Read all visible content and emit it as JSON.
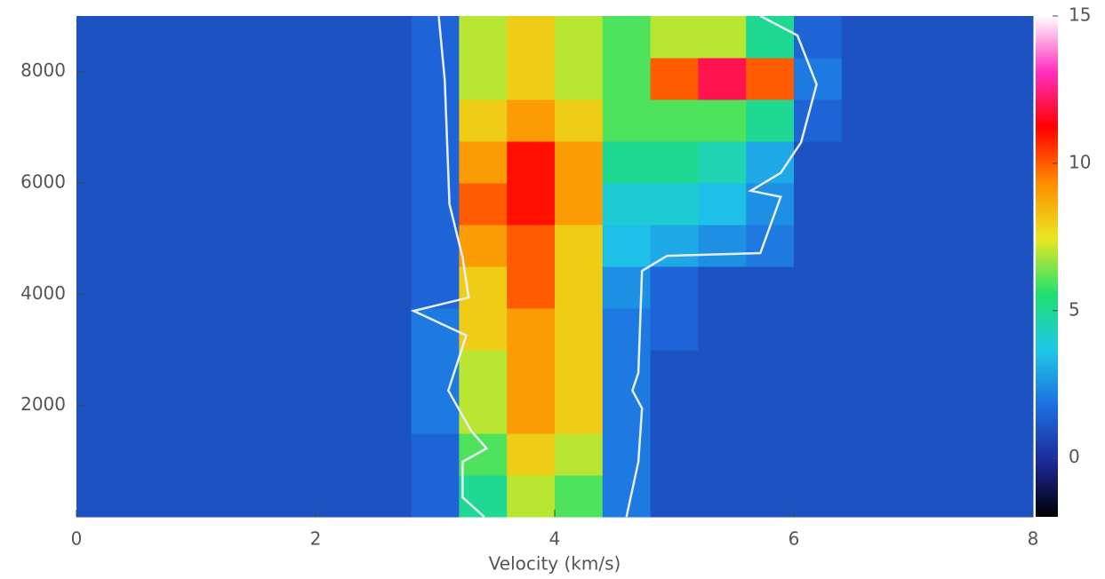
{
  "chart_data": {
    "type": "heatmap",
    "xlabel": "Velocity (km/s)",
    "xlim": [
      0,
      8
    ],
    "xticks": [
      0,
      2,
      4,
      6,
      8
    ],
    "ylim": [
      0,
      9000
    ],
    "yticks": [
      2000,
      4000,
      6000,
      8000
    ],
    "x_bins": [
      0,
      0.4,
      0.8,
      1.2,
      1.6,
      2.0,
      2.4,
      2.8,
      3.2,
      3.6,
      4.0,
      4.4,
      4.8,
      5.2,
      5.6,
      6.0,
      6.4,
      6.8,
      7.2,
      7.6,
      8.0
    ],
    "y_bins": [
      0,
      750,
      1500,
      2250,
      3000,
      3750,
      4500,
      5250,
      6000,
      6750,
      7500,
      8250,
      9000
    ],
    "z": [
      [
        1,
        1,
        1,
        1,
        1,
        1,
        1,
        1.5,
        5,
        7,
        6,
        2,
        1,
        1,
        1,
        1,
        1,
        1,
        1,
        1
      ],
      [
        1,
        1,
        1,
        1,
        1,
        1,
        1,
        1.5,
        6,
        8,
        7,
        2,
        1,
        1,
        1,
        1,
        1,
        1,
        1,
        1
      ],
      [
        1,
        1,
        1,
        1,
        1,
        1,
        1,
        2,
        7,
        9,
        8,
        2,
        1,
        1,
        1,
        1,
        1,
        1,
        1,
        1
      ],
      [
        1,
        1,
        1,
        1,
        1,
        1,
        1,
        2,
        7,
        9,
        8,
        2,
        1,
        1,
        1,
        1,
        1,
        1,
        1,
        1
      ],
      [
        1,
        1,
        1,
        1,
        1,
        1,
        1,
        2,
        8,
        9,
        8,
        2,
        1.5,
        1,
        1,
        1,
        1,
        1,
        1,
        1
      ],
      [
        1,
        1,
        1,
        1,
        1,
        1,
        1,
        1.5,
        8,
        10,
        8,
        2.5,
        1.5,
        1,
        1,
        1,
        1,
        1,
        1,
        1
      ],
      [
        1,
        1,
        1,
        1,
        1,
        1,
        1,
        1.5,
        9,
        10,
        8,
        3.5,
        3,
        2.5,
        2,
        1,
        1,
        1,
        1,
        1
      ],
      [
        1,
        1,
        1,
        1,
        1,
        1,
        1,
        1.5,
        10,
        11,
        9,
        4,
        4,
        3.5,
        2.5,
        1,
        1,
        1,
        1,
        1
      ],
      [
        1,
        1,
        1,
        1,
        1,
        1,
        1,
        1.5,
        9,
        11,
        9,
        5,
        5,
        4.5,
        3,
        1,
        1,
        1,
        1,
        1
      ],
      [
        1,
        1,
        1,
        1,
        1,
        1,
        1,
        1.5,
        8,
        9,
        8,
        6,
        6,
        6,
        5,
        1.5,
        1,
        1,
        1,
        1
      ],
      [
        1,
        1,
        1,
        1,
        1,
        1,
        1,
        1.5,
        7,
        8,
        7,
        6,
        10,
        12,
        10,
        2,
        1,
        1,
        1,
        1
      ],
      [
        1,
        1,
        1,
        1,
        1,
        1,
        1,
        1.5,
        7,
        8,
        7,
        6,
        7,
        7,
        5,
        1.5,
        1,
        1,
        1,
        1
      ]
    ],
    "colorscale": [
      "#000000",
      "#1c2a9a",
      "#1e6ee0",
      "#1ec8e8",
      "#20e070",
      "#e8e820",
      "#ff8c00",
      "#ff0000",
      "#ff30c0",
      "#ffffff"
    ],
    "clim": [
      -2,
      15
    ],
    "cticks": [
      0,
      5,
      10,
      15
    ],
    "contour_color": "#e8eef8",
    "contours": [
      {
        "x": [
          3.03,
          3.08,
          3.12,
          3.23,
          3.28,
          2.82,
          3.26,
          3.11,
          3.3,
          3.43,
          3.23,
          3.23,
          3.41
        ],
        "y": [
          9000,
          7850,
          5620,
          4660,
          3940,
          3700,
          3260,
          2270,
          1550,
          1230,
          990,
          350,
          0
        ]
      },
      {
        "x": [
          5.72,
          6.03,
          6.19,
          6.06,
          5.89,
          5.64,
          5.89,
          5.72,
          4.94,
          4.73,
          4.7,
          4.65,
          4.73,
          4.7,
          4.6
        ],
        "y": [
          9000,
          8650,
          7770,
          6730,
          6180,
          5860,
          5750,
          4740,
          4690,
          4420,
          2590,
          2270,
          1950,
          990,
          0
        ]
      }
    ]
  }
}
